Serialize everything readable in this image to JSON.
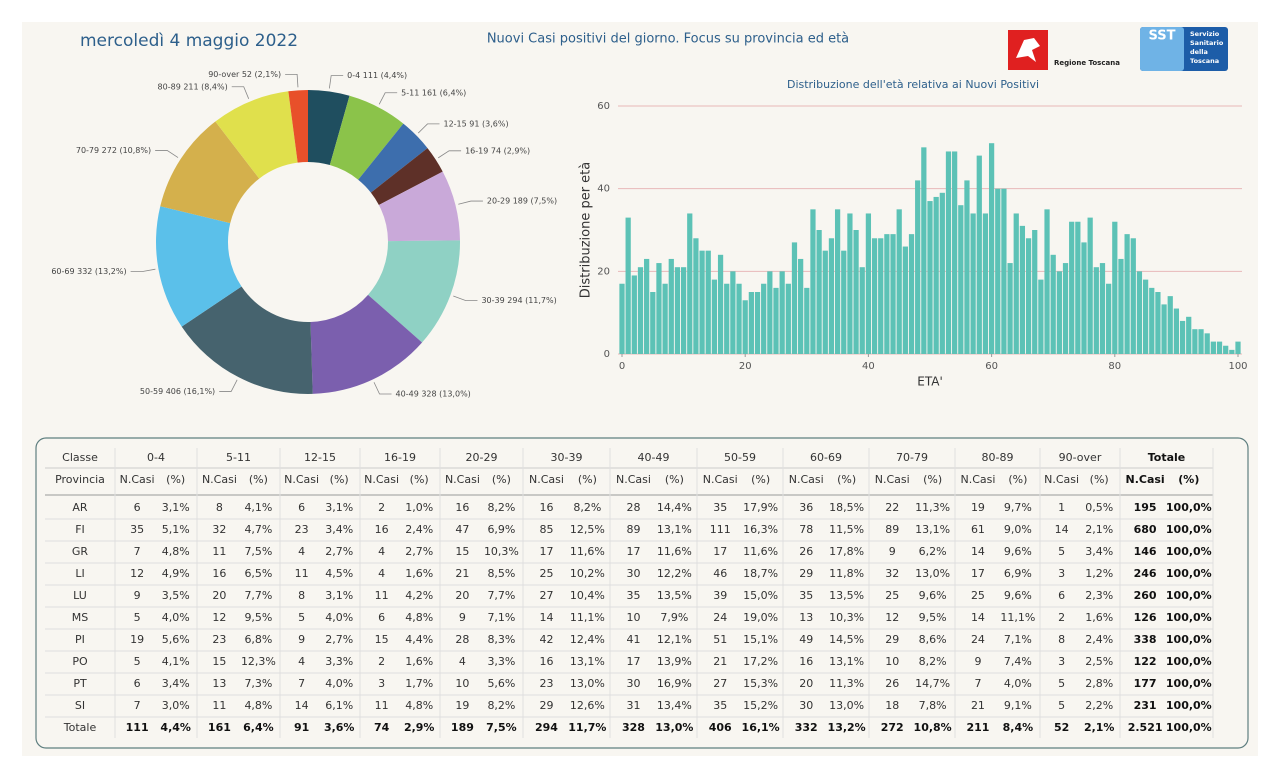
{
  "header": {
    "date": "mercoledì 4 maggio 2022",
    "title": "Nuovi Casi positivi del giorno. Focus su provincia ed età",
    "logo_regione": "Regione Toscana",
    "logo_sst": "SST",
    "logo_sst_text": [
      "Servizio",
      "Sanitario",
      "della",
      "Toscana"
    ]
  },
  "chart_data": [
    {
      "type": "donut",
      "categories": [
        "0-4",
        "5-11",
        "12-15",
        "16-19",
        "20-29",
        "30-39",
        "40-49",
        "50-59",
        "60-69",
        "70-79",
        "80-89",
        "90-over"
      ],
      "values": [
        111,
        161,
        91,
        74,
        189,
        294,
        328,
        406,
        332,
        272,
        211,
        52
      ],
      "value_labels": [
        "0-4 111 (4,4%)",
        "5-11 161 (6,4%)",
        "12-15 91 (3,6%)",
        "16-19 74 (2,9%)",
        "20-29 189 (7,5%)",
        "30-39 294 (11,7%)",
        "40-49 328 (13,0%)",
        "50-59 406 (16,1%)",
        "60-69 332 (13,2%)",
        "70-79 272 (10,8%)",
        "80-89 211 (8,4%)",
        "90-over 52 (2,1%)"
      ],
      "colors": [
        "#1f4e5f",
        "#8bc34a",
        "#3d6ead",
        "#5e3028",
        "#c9a9d9",
        "#8fd1c4",
        "#7b5fae",
        "#46636e",
        "#5bc0ea",
        "#d4b04c",
        "#e0e04c",
        "#e8502a"
      ]
    },
    {
      "type": "bar",
      "title": "Distribuzione dell'età relativa ai Nuovi Positivi",
      "x_label": "ETA'",
      "y_label": "Distribuzione per età",
      "x": [
        0,
        1,
        2,
        3,
        4,
        5,
        6,
        7,
        8,
        9,
        10,
        11,
        12,
        13,
        14,
        15,
        16,
        17,
        18,
        19,
        20,
        21,
        22,
        23,
        24,
        25,
        26,
        27,
        28,
        29,
        30,
        31,
        32,
        33,
        34,
        35,
        36,
        37,
        38,
        39,
        40,
        41,
        42,
        43,
        44,
        45,
        46,
        47,
        48,
        49,
        50,
        51,
        52,
        53,
        54,
        55,
        56,
        57,
        58,
        59,
        60,
        61,
        62,
        63,
        64,
        65,
        66,
        67,
        68,
        69,
        70,
        71,
        72,
        73,
        74,
        75,
        76,
        77,
        78,
        79,
        80,
        81,
        82,
        83,
        84,
        85,
        86,
        87,
        88,
        89,
        90,
        91,
        92,
        93,
        94,
        95,
        96,
        97,
        98,
        99,
        100
      ],
      "values": [
        17,
        33,
        19,
        21,
        23,
        15,
        22,
        17,
        23,
        21,
        21,
        34,
        28,
        25,
        25,
        18,
        24,
        17,
        20,
        17,
        13,
        15,
        15,
        17,
        20,
        16,
        20,
        17,
        27,
        23,
        16,
        35,
        30,
        25,
        28,
        35,
        25,
        34,
        30,
        21,
        34,
        28,
        28,
        29,
        29,
        35,
        26,
        29,
        42,
        50,
        37,
        38,
        39,
        49,
        49,
        36,
        42,
        34,
        48,
        34,
        51,
        40,
        40,
        22,
        34,
        31,
        28,
        30,
        18,
        35,
        24,
        20,
        22,
        32,
        32,
        27,
        33,
        21,
        22,
        17,
        32,
        23,
        29,
        28,
        20,
        18,
        16,
        15,
        12,
        14,
        11,
        8,
        9,
        6,
        6,
        5,
        3,
        3,
        2,
        1,
        3
      ],
      "color": "#5cc2b6",
      "xlim": [
        0,
        100
      ],
      "xticks": [
        0,
        20,
        40,
        60,
        80,
        100
      ],
      "ylim": [
        0,
        60
      ],
      "yticks": [
        0,
        20,
        40,
        60
      ],
      "grid": true,
      "grid_color": "#e8b8b8"
    }
  ],
  "table": {
    "header": [
      "Classe",
      "0-4",
      "5-11",
      "12-15",
      "16-19",
      "20-29",
      "30-39",
      "40-49",
      "50-59",
      "60-69",
      "70-79",
      "80-89",
      "90-over",
      "Totale"
    ],
    "subheader": [
      "Provincia",
      "N.Casi",
      "(%)",
      "N.Casi",
      "(%)",
      "N.Casi",
      "(%)",
      "N.Casi",
      "(%)",
      "N.Casi",
      "(%)",
      "N.Casi",
      "(%)",
      "N.Casi",
      "(%)",
      "N.Casi",
      "(%)",
      "N.Casi",
      "(%)",
      "N.Casi",
      "(%)",
      "N.Casi",
      "(%)",
      "N.Casi",
      "(%)",
      "N.Casi",
      "(%)"
    ],
    "rows": [
      [
        "AR",
        "6",
        "3,1%",
        "8",
        "4,1%",
        "6",
        "3,1%",
        "2",
        "1,0%",
        "16",
        "8,2%",
        "16",
        "8,2%",
        "28",
        "14,4%",
        "35",
        "17,9%",
        "36",
        "18,5%",
        "22",
        "11,3%",
        "19",
        "9,7%",
        "1",
        "0,5%",
        "195",
        "100,0%"
      ],
      [
        "FI",
        "35",
        "5,1%",
        "32",
        "4,7%",
        "23",
        "3,4%",
        "16",
        "2,4%",
        "47",
        "6,9%",
        "85",
        "12,5%",
        "89",
        "13,1%",
        "111",
        "16,3%",
        "78",
        "11,5%",
        "89",
        "13,1%",
        "61",
        "9,0%",
        "14",
        "2,1%",
        "680",
        "100,0%"
      ],
      [
        "GR",
        "7",
        "4,8%",
        "11",
        "7,5%",
        "4",
        "2,7%",
        "4",
        "2,7%",
        "15",
        "10,3%",
        "17",
        "11,6%",
        "17",
        "11,6%",
        "17",
        "11,6%",
        "26",
        "17,8%",
        "9",
        "6,2%",
        "14",
        "9,6%",
        "5",
        "3,4%",
        "146",
        "100,0%"
      ],
      [
        "LI",
        "12",
        "4,9%",
        "16",
        "6,5%",
        "11",
        "4,5%",
        "4",
        "1,6%",
        "21",
        "8,5%",
        "25",
        "10,2%",
        "30",
        "12,2%",
        "46",
        "18,7%",
        "29",
        "11,8%",
        "32",
        "13,0%",
        "17",
        "6,9%",
        "3",
        "1,2%",
        "246",
        "100,0%"
      ],
      [
        "LU",
        "9",
        "3,5%",
        "20",
        "7,7%",
        "8",
        "3,1%",
        "11",
        "4,2%",
        "20",
        "7,7%",
        "27",
        "10,4%",
        "35",
        "13,5%",
        "39",
        "15,0%",
        "35",
        "13,5%",
        "25",
        "9,6%",
        "25",
        "9,6%",
        "6",
        "2,3%",
        "260",
        "100,0%"
      ],
      [
        "MS",
        "5",
        "4,0%",
        "12",
        "9,5%",
        "5",
        "4,0%",
        "6",
        "4,8%",
        "9",
        "7,1%",
        "14",
        "11,1%",
        "10",
        "7,9%",
        "24",
        "19,0%",
        "13",
        "10,3%",
        "12",
        "9,5%",
        "14",
        "11,1%",
        "2",
        "1,6%",
        "126",
        "100,0%"
      ],
      [
        "PI",
        "19",
        "5,6%",
        "23",
        "6,8%",
        "9",
        "2,7%",
        "15",
        "4,4%",
        "28",
        "8,3%",
        "42",
        "12,4%",
        "41",
        "12,1%",
        "51",
        "15,1%",
        "49",
        "14,5%",
        "29",
        "8,6%",
        "24",
        "7,1%",
        "8",
        "2,4%",
        "338",
        "100,0%"
      ],
      [
        "PO",
        "5",
        "4,1%",
        "15",
        "12,3%",
        "4",
        "3,3%",
        "2",
        "1,6%",
        "4",
        "3,3%",
        "16",
        "13,1%",
        "17",
        "13,9%",
        "21",
        "17,2%",
        "16",
        "13,1%",
        "10",
        "8,2%",
        "9",
        "7,4%",
        "3",
        "2,5%",
        "122",
        "100,0%"
      ],
      [
        "PT",
        "6",
        "3,4%",
        "13",
        "7,3%",
        "7",
        "4,0%",
        "3",
        "1,7%",
        "10",
        "5,6%",
        "23",
        "13,0%",
        "30",
        "16,9%",
        "27",
        "15,3%",
        "20",
        "11,3%",
        "26",
        "14,7%",
        "7",
        "4,0%",
        "5",
        "2,8%",
        "177",
        "100,0%"
      ],
      [
        "SI",
        "7",
        "3,0%",
        "11",
        "4,8%",
        "14",
        "6,1%",
        "11",
        "4,8%",
        "19",
        "8,2%",
        "29",
        "12,6%",
        "31",
        "13,4%",
        "35",
        "15,2%",
        "30",
        "13,0%",
        "18",
        "7,8%",
        "21",
        "9,1%",
        "5",
        "2,2%",
        "231",
        "100,0%"
      ],
      [
        "Totale",
        "111",
        "4,4%",
        "161",
        "6,4%",
        "91",
        "3,6%",
        "74",
        "2,9%",
        "189",
        "7,5%",
        "294",
        "11,7%",
        "328",
        "13,0%",
        "406",
        "16,1%",
        "332",
        "13,2%",
        "272",
        "10,8%",
        "211",
        "8,4%",
        "52",
        "2,1%",
        "2.521",
        "100,0%"
      ]
    ]
  }
}
